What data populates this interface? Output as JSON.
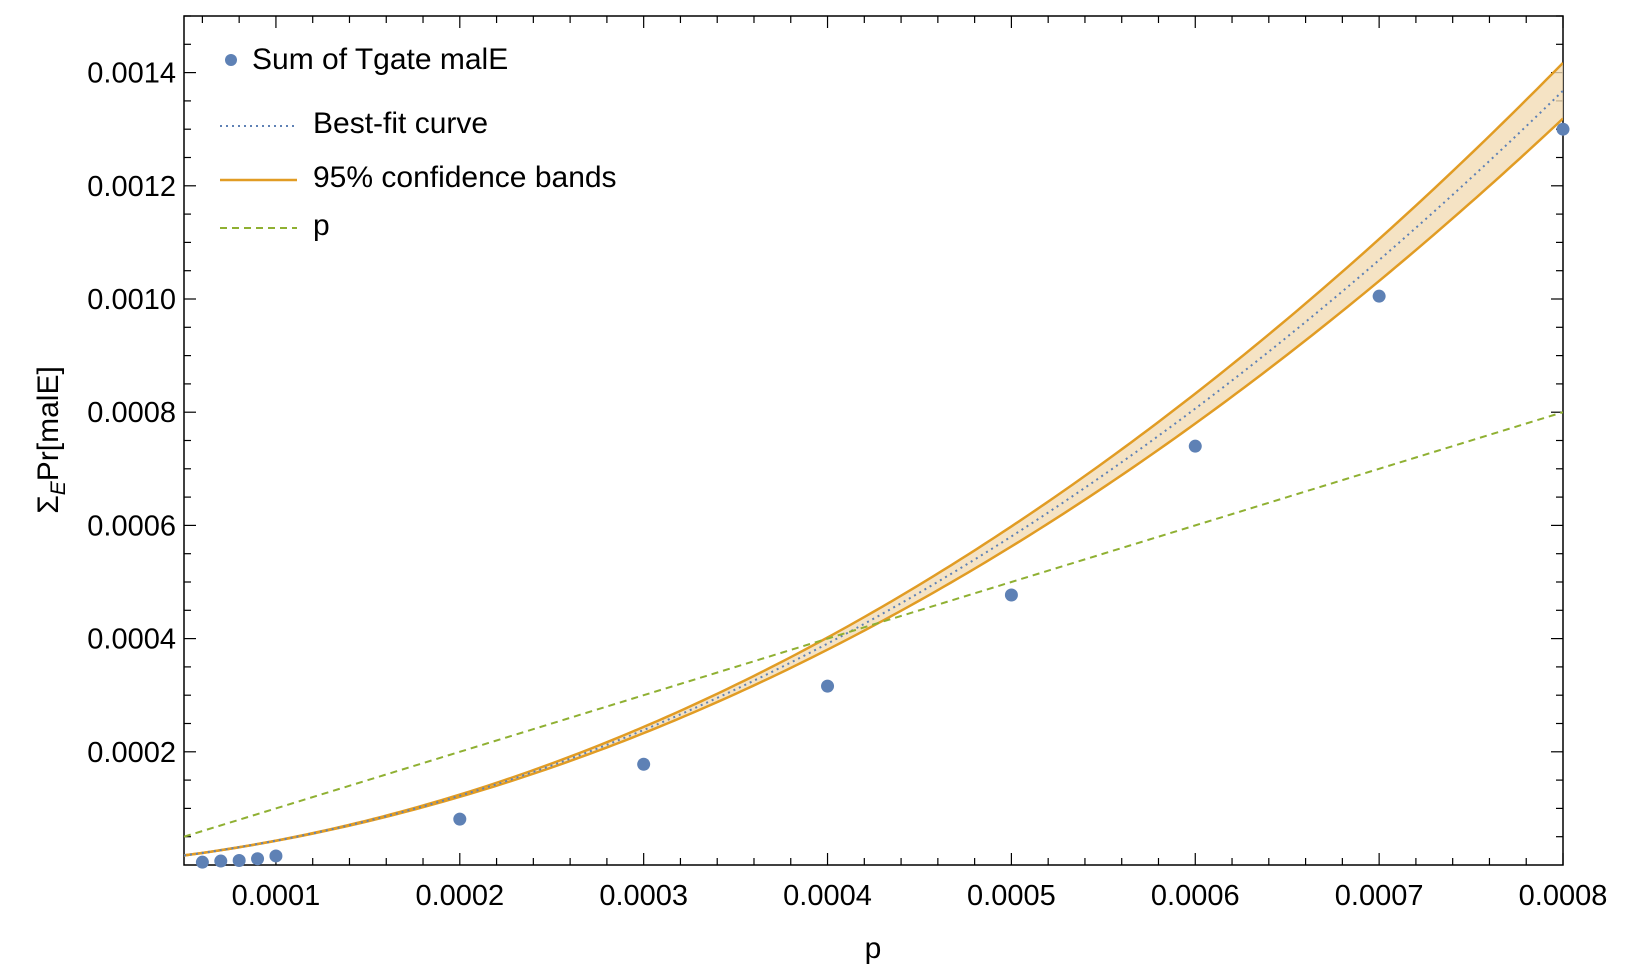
{
  "chart_data": {
    "type": "scatter",
    "title": "",
    "xlabel": "p",
    "ylabel_main": "Σ",
    "ylabel_sub": "E",
    "ylabel_rest": "Pr[malE]",
    "xlim": [
      5e-05,
      0.0008
    ],
    "ylim": [
      0,
      0.0015
    ],
    "x_ticks": [
      0.0001,
      0.0002,
      0.0003,
      0.0004,
      0.0005,
      0.0006,
      0.0007,
      0.0008
    ],
    "x_tick_labels": [
      "0.0001",
      "0.0002",
      "0.0003",
      "0.0004",
      "0.0005",
      "0.0006",
      "0.0007",
      "0.0008"
    ],
    "y_ticks": [
      0.0002,
      0.0004,
      0.0006,
      0.0008,
      0.001,
      0.0012,
      0.0014
    ],
    "y_tick_labels": [
      "0.0002",
      "0.0004",
      "0.0006",
      "0.0008",
      "0.0010",
      "0.0012",
      "0.0014"
    ],
    "grid": false,
    "legend_position": "top-left",
    "series": [
      {
        "name": "Sum of Tgate malE",
        "kind": "points",
        "color": "#5e81b5",
        "x": [
          6e-05,
          7e-05,
          8e-05,
          9e-05,
          0.0001,
          0.0002,
          0.0003,
          0.0004,
          0.0005,
          0.0006,
          0.0007,
          0.0008
        ],
        "y": [
          5e-06,
          7e-06,
          8e-06,
          1.1e-05,
          1.6e-05,
          8.1e-05,
          0.000178,
          0.000316,
          0.000477,
          0.00074,
          0.001005,
          0.0013
        ]
      },
      {
        "name": "Best-fit curve",
        "kind": "fit",
        "style": "dotted",
        "color": "#5e81b5",
        "model": "a*x^2 + b*x",
        "a": 1830,
        "b": 0.246
      },
      {
        "name": "95% confidence bands",
        "kind": "band",
        "style": "solid",
        "color": "#e19c24",
        "fill": "#f2dcb5",
        "half_width_slope": 0.0875
      },
      {
        "name": "p",
        "kind": "reference-line",
        "style": "dashed",
        "color": "#8fb032",
        "model": "y = x"
      }
    ]
  }
}
